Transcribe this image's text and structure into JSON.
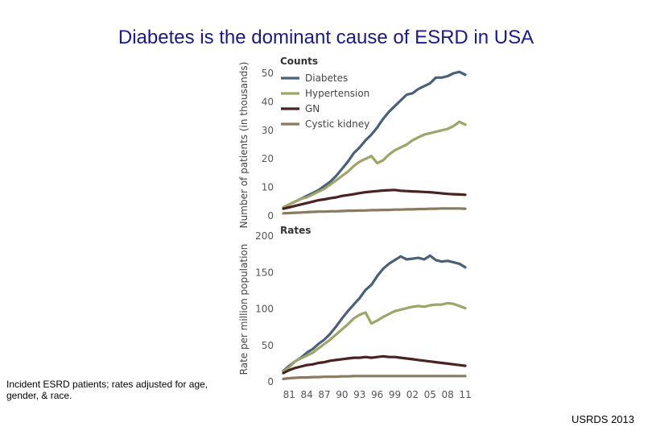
{
  "slide": {
    "title": "Diabetes is the dominant cause of ESRD in USA",
    "caption": "Incident ESRD patients; rates adjusted for age,  gender, & race.",
    "source": "USRDS 2013"
  },
  "colors": {
    "Diabetes": "#4a6077",
    "Hypertension": "#9ea46a",
    "GN": "#4a2220",
    "Cystic kidney": "#8a7a5f"
  },
  "chart_data": [
    {
      "type": "line",
      "title": "Counts",
      "ylabel": "Number of patients (in thousands)",
      "ylim": [
        0,
        50
      ],
      "yticks": [
        0,
        10,
        20,
        30,
        40,
        50
      ],
      "xlim": [
        1980,
        2011
      ],
      "xticks": [
        1981,
        1984,
        1987,
        1990,
        1993,
        1996,
        1999,
        2002,
        2005,
        2008,
        2011
      ],
      "xticklabels": [
        "81",
        "84",
        "87",
        "90",
        "93",
        "96",
        "99",
        "02",
        "05",
        "08",
        "11"
      ],
      "legend": "top-left",
      "x": [
        1980,
        1981,
        1982,
        1983,
        1984,
        1985,
        1986,
        1987,
        1988,
        1989,
        1990,
        1991,
        1992,
        1993,
        1994,
        1995,
        1996,
        1997,
        1998,
        1999,
        2000,
        2001,
        2002,
        2003,
        2004,
        2005,
        2006,
        2007,
        2008,
        2009,
        2010,
        2011
      ],
      "series": [
        {
          "name": "Diabetes",
          "values": [
            3,
            4,
            5,
            6,
            7,
            8,
            9,
            10.5,
            12,
            14,
            16.5,
            19,
            22,
            24,
            26.5,
            28.5,
            31,
            34,
            36.5,
            38.5,
            40.5,
            42.5,
            43,
            44.5,
            45.5,
            46.5,
            48.5,
            48.5,
            49,
            50,
            50.5,
            49.5
          ]
        },
        {
          "name": "Hypertension",
          "values": [
            3,
            4,
            5,
            6,
            6.5,
            7.5,
            8.5,
            9.5,
            11,
            12.5,
            14,
            15.5,
            17.5,
            19,
            20,
            21,
            18.5,
            19.5,
            21.5,
            23,
            24,
            25,
            26.5,
            27.5,
            28.5,
            29,
            29.5,
            30,
            30.5,
            31.5,
            33,
            32
          ]
        },
        {
          "name": "GN",
          "values": [
            2.5,
            3,
            3.5,
            4,
            4.5,
            5,
            5.5,
            5.8,
            6.2,
            6.5,
            7,
            7.3,
            7.6,
            8,
            8.3,
            8.5,
            8.7,
            8.9,
            9,
            9.1,
            8.8,
            8.7,
            8.6,
            8.5,
            8.4,
            8.3,
            8.1,
            7.9,
            7.7,
            7.6,
            7.5,
            7.4
          ]
        },
        {
          "name": "Cystic kidney",
          "values": [
            0.9,
            1,
            1.1,
            1.2,
            1.3,
            1.4,
            1.5,
            1.5,
            1.6,
            1.6,
            1.7,
            1.8,
            1.8,
            1.9,
            1.9,
            2,
            2,
            2.1,
            2.1,
            2.2,
            2.2,
            2.3,
            2.3,
            2.4,
            2.4,
            2.5,
            2.5,
            2.6,
            2.6,
            2.6,
            2.6,
            2.5
          ]
        }
      ]
    },
    {
      "type": "line",
      "title": "Rates",
      "ylabel": "Rate per million population",
      "ylim": [
        0,
        200
      ],
      "yticks": [
        0,
        50,
        100,
        150,
        200
      ],
      "xlim": [
        1980,
        2011
      ],
      "xticks": [
        1981,
        1984,
        1987,
        1990,
        1993,
        1996,
        1999,
        2002,
        2005,
        2008,
        2011
      ],
      "xticklabels": [
        "81",
        "84",
        "87",
        "90",
        "93",
        "96",
        "99",
        "02",
        "05",
        "08",
        "11"
      ],
      "x": [
        1980,
        1981,
        1982,
        1983,
        1984,
        1985,
        1986,
        1987,
        1988,
        1989,
        1990,
        1991,
        1992,
        1993,
        1994,
        1995,
        1996,
        1997,
        1998,
        1999,
        2000,
        2001,
        2002,
        2003,
        2004,
        2005,
        2006,
        2007,
        2008,
        2009,
        2010,
        2011
      ],
      "series": [
        {
          "name": "Diabetes",
          "values": [
            15,
            22,
            28,
            33,
            40,
            45,
            52,
            58,
            66,
            76,
            87,
            97,
            106,
            115,
            126,
            133,
            145,
            155,
            162,
            167,
            172,
            168,
            169,
            170,
            168,
            173,
            167,
            165,
            166,
            164,
            162,
            157
          ]
        },
        {
          "name": "Hypertension",
          "values": [
            14,
            20,
            28,
            32,
            36,
            40,
            46,
            52,
            58,
            65,
            72,
            79,
            87,
            92,
            95,
            80,
            84,
            89,
            93,
            97,
            99,
            101,
            103,
            104,
            103,
            105,
            106,
            106,
            108,
            107,
            104,
            101
          ]
        },
        {
          "name": "GN",
          "values": [
            12,
            16,
            19,
            21,
            23,
            24,
            26,
            27,
            29,
            30,
            31,
            32,
            33,
            33,
            34,
            33,
            34,
            35,
            34,
            34,
            33,
            32,
            31,
            30,
            29,
            28,
            27,
            26,
            25,
            24,
            23,
            22
          ]
        },
        {
          "name": "Cystic kidney",
          "values": [
            4,
            5,
            5.5,
            6,
            6,
            6.5,
            6.5,
            7,
            7,
            7,
            7.5,
            7.5,
            8,
            8,
            8,
            8,
            8,
            8,
            8,
            8,
            8,
            8,
            8,
            8,
            8,
            8,
            8,
            8,
            8,
            8,
            8,
            8
          ]
        }
      ]
    }
  ]
}
